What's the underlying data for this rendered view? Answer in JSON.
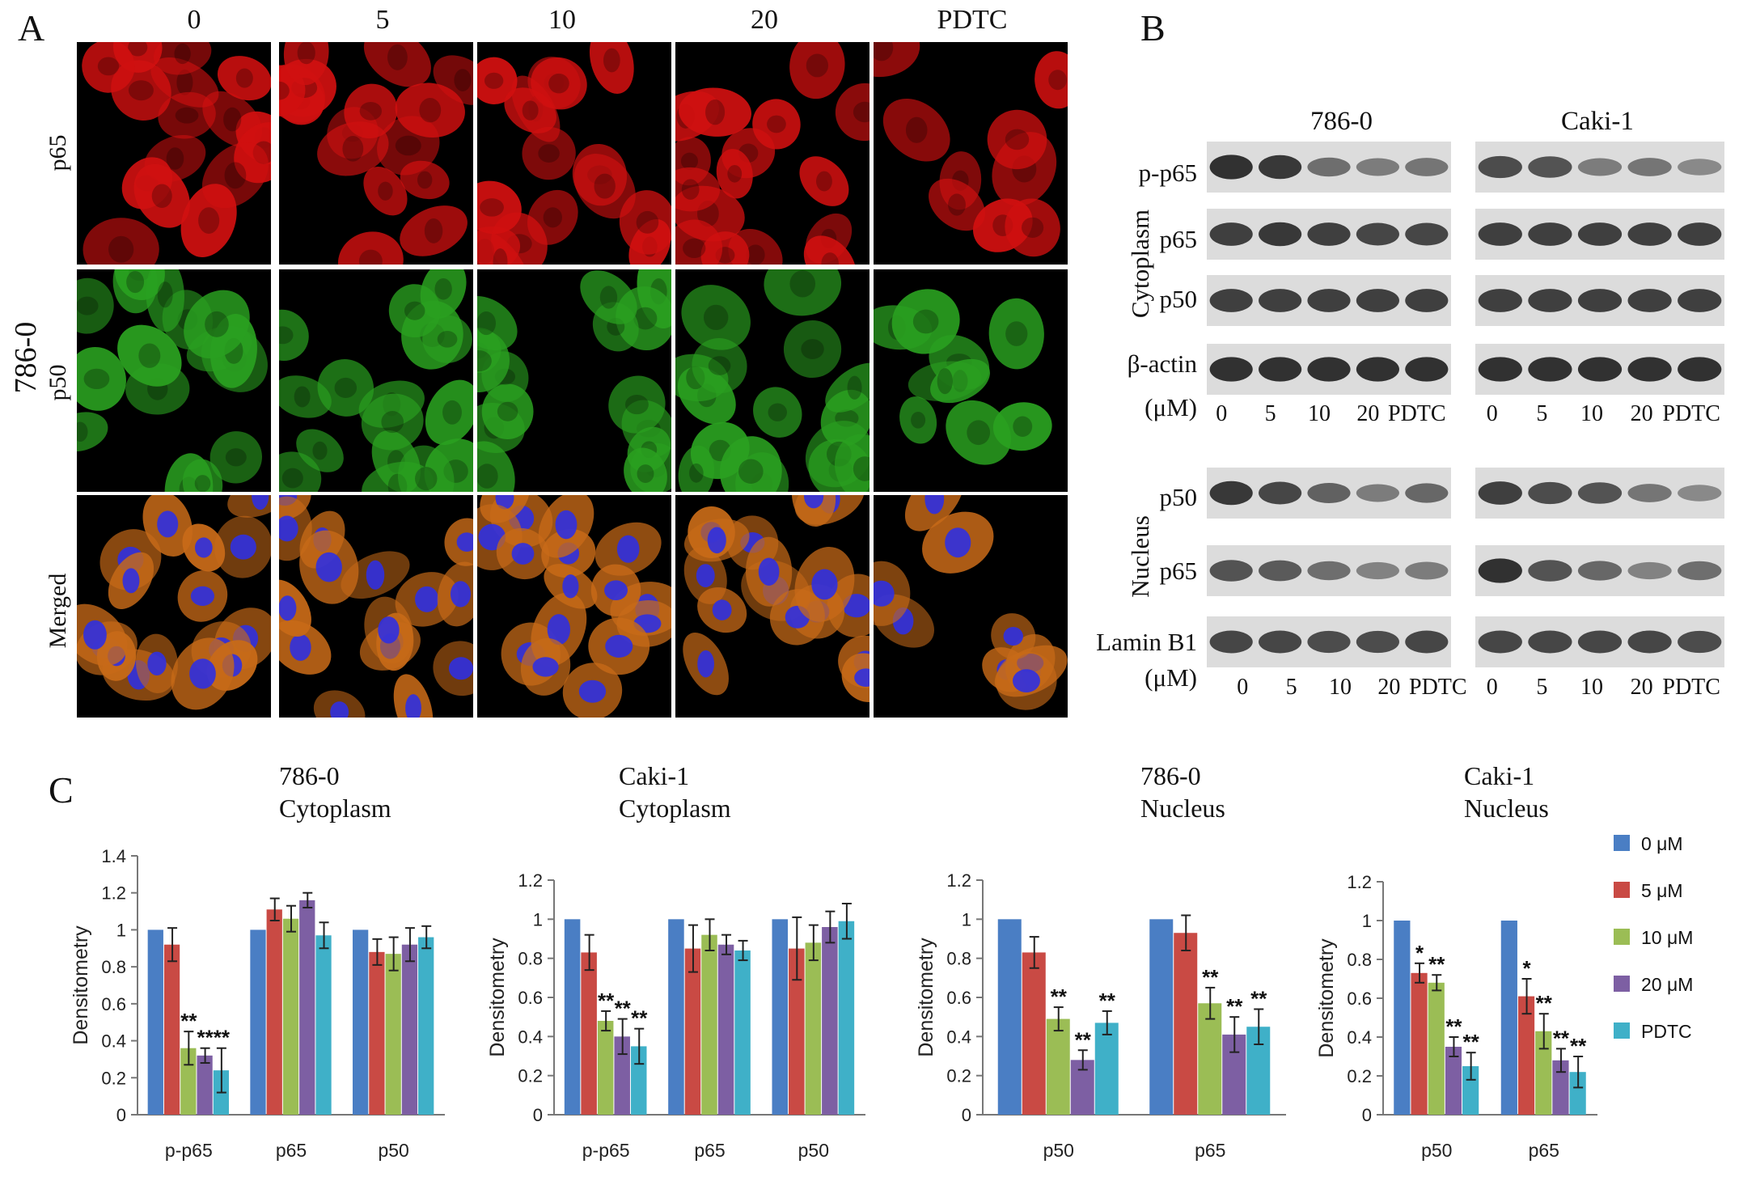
{
  "panels": {
    "a": "A",
    "b": "B",
    "c": "C"
  },
  "panel_a": {
    "columns": [
      "0",
      "5",
      "10",
      "20",
      "PDTC"
    ],
    "rows": [
      "p65",
      "p50",
      "Merged"
    ],
    "cell_line": "786-0",
    "row_colors": {
      "p65": "#d01010",
      "p50": "#2aa020",
      "Merged": "#c76a18"
    }
  },
  "panel_b": {
    "groups": [
      "786-0",
      "Caki-1"
    ],
    "cytoplasm_label": "Cytoplasm",
    "nucleus_label": "Nucleus",
    "cytoplasm_bands": [
      "p-p65",
      "p65",
      "p50",
      "β-actin"
    ],
    "nucleus_bands": [
      "p50",
      "p65",
      "Lamin B1"
    ],
    "unit": "(μM)",
    "lanes": [
      "0",
      "5",
      "10",
      "20",
      "PDTC"
    ]
  },
  "legend": [
    {
      "label": "0 μM",
      "color": "#4a7ec4"
    },
    {
      "label": "5 μM",
      "color": "#c94a44"
    },
    {
      "label": "10 μM",
      "color": "#9bbd55"
    },
    {
      "label": "20 μM",
      "color": "#7d5fa3"
    },
    {
      "label": "PDTC",
      "color": "#3fb0c8"
    }
  ],
  "chart_data": [
    {
      "type": "bar",
      "title": "786-0\nCytoplasm",
      "ylabel": "Densitometry",
      "ylim": [
        0,
        1.4
      ],
      "yticks": [
        "0",
        "0.2",
        "0.4",
        "0.6",
        "0.8",
        "1",
        "1.2",
        "1.4"
      ],
      "categories": [
        "p-p65",
        "p65",
        "p50"
      ],
      "series": [
        {
          "name": "0 μM",
          "values": [
            1.0,
            1.0,
            1.0
          ],
          "errors": [
            0,
            0,
            0
          ],
          "sig": [
            "",
            "",
            ""
          ]
        },
        {
          "name": "5 μM",
          "values": [
            0.92,
            1.11,
            0.88
          ],
          "errors": [
            0.09,
            0.06,
            0.07
          ],
          "sig": [
            "",
            "",
            ""
          ]
        },
        {
          "name": "10 μM",
          "values": [
            0.36,
            1.06,
            0.87
          ],
          "errors": [
            0.09,
            0.07,
            0.09
          ],
          "sig": [
            "**",
            "",
            ""
          ]
        },
        {
          "name": "20 μM",
          "values": [
            0.32,
            1.16,
            0.92
          ],
          "errors": [
            0.04,
            0.04,
            0.09
          ],
          "sig": [
            "**",
            "",
            ""
          ]
        },
        {
          "name": "PDTC",
          "values": [
            0.24,
            0.97,
            0.96
          ],
          "errors": [
            0.12,
            0.07,
            0.06
          ],
          "sig": [
            "**",
            "",
            ""
          ]
        }
      ]
    },
    {
      "type": "bar",
      "title": "Caki-1\nCytoplasm",
      "ylabel": "Densitometry",
      "ylim": [
        0,
        1.2
      ],
      "yticks": [
        "0",
        "0.2",
        "0.4",
        "0.6",
        "0.8",
        "1",
        "1.2"
      ],
      "categories": [
        "p-p65",
        "p65",
        "p50"
      ],
      "series": [
        {
          "name": "0 μM",
          "values": [
            1.0,
            1.0,
            1.0
          ],
          "errors": [
            0,
            0,
            0
          ],
          "sig": [
            "",
            "",
            ""
          ]
        },
        {
          "name": "5 μM",
          "values": [
            0.83,
            0.85,
            0.85
          ],
          "errors": [
            0.09,
            0.12,
            0.16
          ],
          "sig": [
            "",
            "",
            ""
          ]
        },
        {
          "name": "10 μM",
          "values": [
            0.48,
            0.92,
            0.88
          ],
          "errors": [
            0.05,
            0.08,
            0.09
          ],
          "sig": [
            "**",
            "",
            ""
          ]
        },
        {
          "name": "20 μM",
          "values": [
            0.4,
            0.87,
            0.96
          ],
          "errors": [
            0.09,
            0.05,
            0.08
          ],
          "sig": [
            "**",
            "",
            ""
          ]
        },
        {
          "name": "PDTC",
          "values": [
            0.35,
            0.84,
            0.99
          ],
          "errors": [
            0.09,
            0.05,
            0.09
          ],
          "sig": [
            "**",
            "",
            ""
          ]
        }
      ]
    },
    {
      "type": "bar",
      "title": "786-0\nNucleus",
      "ylabel": "Densitometry",
      "ylim": [
        0,
        1.2
      ],
      "yticks": [
        "0",
        "0.2",
        "0.4",
        "0.6",
        "0.8",
        "1",
        "1.2"
      ],
      "categories": [
        "p50",
        "p65"
      ],
      "series": [
        {
          "name": "0 μM",
          "values": [
            1.0,
            1.0
          ],
          "errors": [
            0,
            0
          ],
          "sig": [
            "",
            ""
          ]
        },
        {
          "name": "5 μM",
          "values": [
            0.83,
            0.93
          ],
          "errors": [
            0.08,
            0.09
          ],
          "sig": [
            "",
            ""
          ]
        },
        {
          "name": "10 μM",
          "values": [
            0.49,
            0.57
          ],
          "errors": [
            0.06,
            0.08
          ],
          "sig": [
            "**",
            "**"
          ]
        },
        {
          "name": "20 μM",
          "values": [
            0.28,
            0.41
          ],
          "errors": [
            0.05,
            0.09
          ],
          "sig": [
            "**",
            "**"
          ]
        },
        {
          "name": "PDTC",
          "values": [
            0.47,
            0.45
          ],
          "errors": [
            0.06,
            0.09
          ],
          "sig": [
            "**",
            "**"
          ]
        }
      ]
    },
    {
      "type": "bar",
      "title": "Caki-1\nNucleus",
      "ylabel": "Densitometry",
      "ylim": [
        0,
        1.2
      ],
      "yticks": [
        "0",
        "0.2",
        "0.4",
        "0.6",
        "0.8",
        "1",
        "1.2"
      ],
      "categories": [
        "p50",
        "p65"
      ],
      "series": [
        {
          "name": "0 μM",
          "values": [
            1.0,
            1.0
          ],
          "errors": [
            0,
            0
          ],
          "sig": [
            "",
            ""
          ]
        },
        {
          "name": "5 μM",
          "values": [
            0.73,
            0.61
          ],
          "errors": [
            0.05,
            0.09
          ],
          "sig": [
            "*",
            "*"
          ]
        },
        {
          "name": "10 μM",
          "values": [
            0.68,
            0.43
          ],
          "errors": [
            0.04,
            0.09
          ],
          "sig": [
            "**",
            "**"
          ]
        },
        {
          "name": "20 μM",
          "values": [
            0.35,
            0.28
          ],
          "errors": [
            0.05,
            0.06
          ],
          "sig": [
            "**",
            "**"
          ]
        },
        {
          "name": "PDTC",
          "values": [
            0.25,
            0.22
          ],
          "errors": [
            0.07,
            0.08
          ],
          "sig": [
            "**",
            "**"
          ]
        }
      ]
    }
  ]
}
